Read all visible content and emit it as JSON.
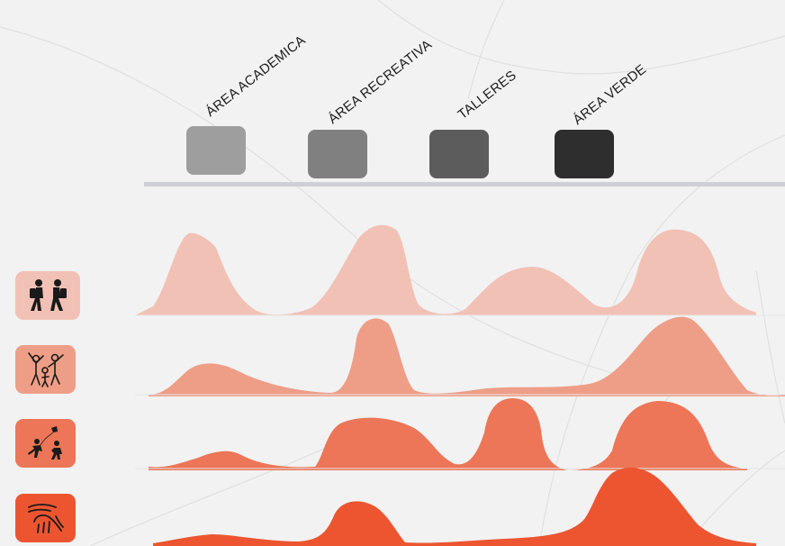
{
  "categories": [
    {
      "label": "ÁREA ACADEMICA",
      "color": "#9e9e9e"
    },
    {
      "label": "ÁREA RECREATIVA",
      "color": "#808080"
    },
    {
      "label": "TALLERES",
      "color": "#5c5c5c"
    },
    {
      "label": "ÁREA VERDE",
      "color": "#2e2e2e"
    }
  ],
  "user_groups": [
    {
      "icon": "students-walking-icon",
      "color": "#f2c1b5",
      "icon_bg": "#f2c1b5"
    },
    {
      "icon": "children-playing-icon",
      "color": "#ee9e87",
      "icon_bg": "#ee9e87"
    },
    {
      "icon": "kids-kite-icon",
      "color": "#ec7657",
      "icon_bg": "#ec7657"
    },
    {
      "icon": "caring-hands-icon",
      "color": "#ec5530",
      "icon_bg": "#ec5530"
    }
  ]
}
